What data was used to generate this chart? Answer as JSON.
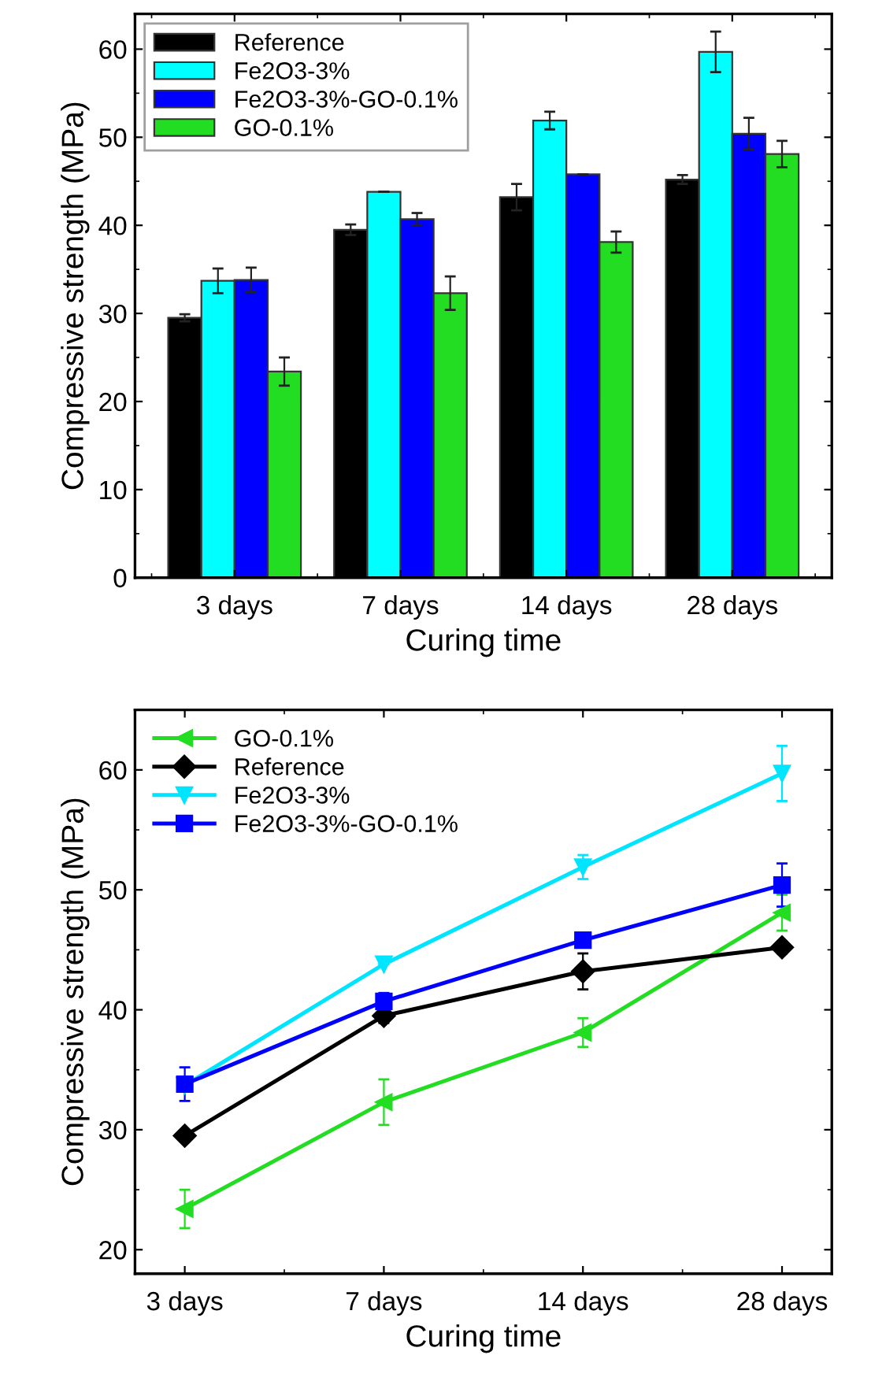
{
  "chart_data": [
    {
      "type": "bar",
      "xlabel": "Curing time",
      "ylabel": "Compressive strength (MPa)",
      "categories": [
        "3 days",
        "7 days",
        "14 days",
        "28 days"
      ],
      "ylim": [
        0,
        64
      ],
      "yticks": [
        0,
        10,
        20,
        30,
        40,
        50,
        60
      ],
      "legend": "top left",
      "grid": false,
      "series": [
        {
          "name": "Reference",
          "color": "#000000",
          "values": [
            29.5,
            39.5,
            43.2,
            45.2
          ],
          "errors": [
            0.4,
            0.6,
            1.5,
            0.5
          ]
        },
        {
          "name": "Fe2O3-3%",
          "color": "#00ffff",
          "values": [
            33.7,
            43.8,
            51.9,
            59.7
          ],
          "errors": [
            1.4,
            null,
            1.0,
            2.3
          ]
        },
        {
          "name": "Fe2O3-3%-GO-0.1%",
          "color": "#0000ff",
          "values": [
            33.8,
            40.7,
            45.8,
            50.4
          ],
          "errors": [
            1.4,
            0.7,
            null,
            1.8
          ]
        },
        {
          "name": "GO-0.1%",
          "color": "#22dd22",
          "values": [
            23.4,
            32.3,
            38.1,
            48.1
          ],
          "errors": [
            1.6,
            1.9,
            1.2,
            1.5
          ]
        }
      ]
    },
    {
      "type": "line",
      "xlabel": "Curing time",
      "ylabel": "Compressive strength (MPa)",
      "categories": [
        "3 days",
        "7 days",
        "14 days",
        "28 days"
      ],
      "ylim": [
        18,
        65
      ],
      "yticks": [
        20,
        30,
        40,
        50,
        60
      ],
      "legend": "top left",
      "grid": false,
      "line_style": "solid",
      "series": [
        {
          "name": "GO-0.1%",
          "color": "#22dd22",
          "marker": "triangle-left",
          "values": [
            23.4,
            32.3,
            38.1,
            48.1
          ],
          "errors": [
            1.6,
            1.9,
            1.2,
            1.5
          ]
        },
        {
          "name": "Reference",
          "color": "#000000",
          "marker": "diamond",
          "values": [
            29.5,
            39.5,
            43.2,
            45.2
          ],
          "errors": [
            0.4,
            0.6,
            1.5,
            0.5
          ]
        },
        {
          "name": "Fe2O3-3%",
          "color": "#00e5ff",
          "marker": "triangle-down",
          "values": [
            33.7,
            43.8,
            51.9,
            59.7
          ],
          "errors": [
            null,
            null,
            1.0,
            2.3
          ]
        },
        {
          "name": "Fe2O3-3%-GO-0.1%",
          "color": "#0000ff",
          "marker": "square",
          "values": [
            33.8,
            40.7,
            45.8,
            50.4
          ],
          "errors": [
            1.4,
            0.7,
            null,
            1.8
          ]
        }
      ]
    }
  ]
}
